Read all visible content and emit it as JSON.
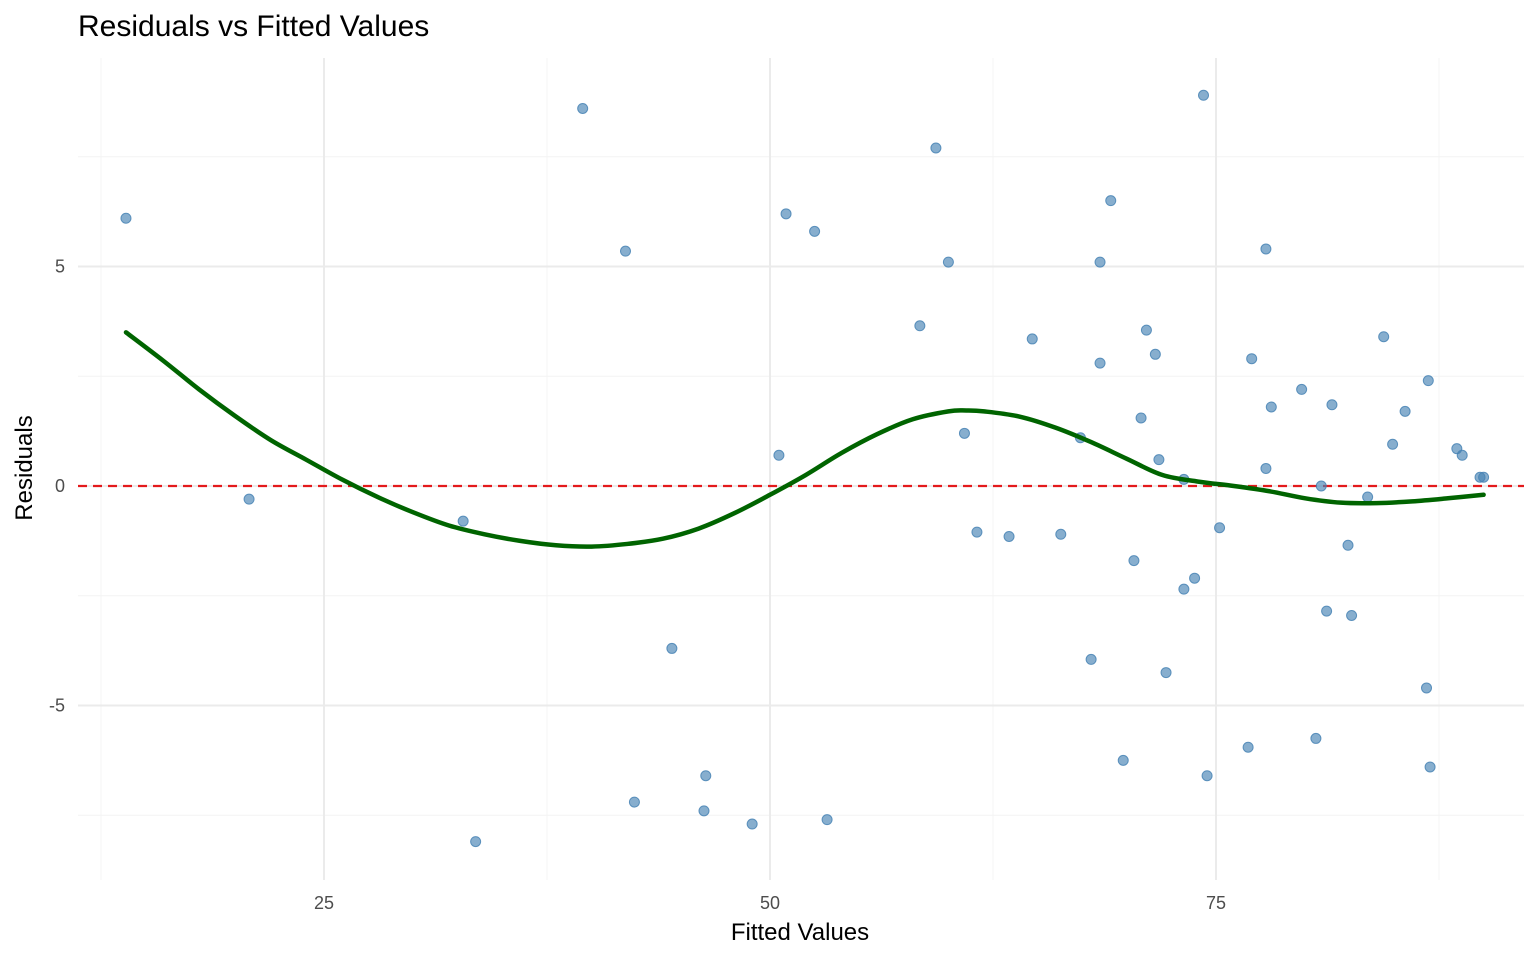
{
  "chart_data": {
    "type": "scatter",
    "title": "Residuals vs Fitted Values",
    "xlabel": "Fitted Values",
    "ylabel": "Residuals",
    "xlim": [
      10,
      90
    ],
    "ylim": [
      -9,
      9.5
    ],
    "x_ticks": [
      25,
      50,
      75
    ],
    "y_ticks": [
      -5,
      0,
      5
    ],
    "x_minor_ticks": [
      12.5,
      37.5,
      62.5,
      87.5
    ],
    "y_minor_ticks": [
      -7.5,
      -2.5,
      2.5,
      7.5
    ],
    "grid": true,
    "legend": "none",
    "colors": {
      "points": "#4682B4",
      "smooth": "#006400",
      "reference": "#E31A1C",
      "grid_major": "#EBEBEB",
      "grid_minor": "#F4F4F4"
    },
    "reference_line": {
      "y": 0,
      "style": "dashed"
    },
    "points": [
      [
        13.9,
        6.1
      ],
      [
        20.8,
        -0.3
      ],
      [
        32.8,
        -0.8
      ],
      [
        33.5,
        -8.1
      ],
      [
        39.5,
        8.6
      ],
      [
        41.9,
        5.35
      ],
      [
        42.4,
        -7.2
      ],
      [
        44.5,
        -3.7
      ],
      [
        46.3,
        -7.4
      ],
      [
        46.4,
        -6.6
      ],
      [
        49.0,
        -7.7
      ],
      [
        50.5,
        0.7
      ],
      [
        50.9,
        6.2
      ],
      [
        52.5,
        5.8
      ],
      [
        53.2,
        -7.6
      ],
      [
        58.4,
        3.65
      ],
      [
        59.3,
        7.7
      ],
      [
        60.0,
        5.1
      ],
      [
        60.9,
        1.2
      ],
      [
        61.6,
        -1.05
      ],
      [
        63.4,
        -1.15
      ],
      [
        64.7,
        3.35
      ],
      [
        66.3,
        -1.1
      ],
      [
        67.4,
        1.1
      ],
      [
        68.0,
        -3.95
      ],
      [
        68.5,
        2.8
      ],
      [
        68.5,
        5.1
      ],
      [
        69.1,
        6.5
      ],
      [
        69.8,
        -6.25
      ],
      [
        70.4,
        -1.7
      ],
      [
        70.8,
        1.55
      ],
      [
        71.1,
        3.55
      ],
      [
        71.6,
        3.0
      ],
      [
        71.8,
        0.6
      ],
      [
        72.2,
        -4.25
      ],
      [
        73.2,
        0.15
      ],
      [
        73.2,
        -2.35
      ],
      [
        73.8,
        -2.1
      ],
      [
        74.3,
        8.9
      ],
      [
        74.5,
        -6.6
      ],
      [
        75.2,
        -0.95
      ],
      [
        76.8,
        -5.95
      ],
      [
        77.0,
        2.9
      ],
      [
        77.8,
        5.4
      ],
      [
        77.8,
        0.4
      ],
      [
        78.1,
        1.8
      ],
      [
        79.8,
        2.2
      ],
      [
        80.6,
        -5.75
      ],
      [
        80.9,
        0.0
      ],
      [
        81.2,
        -2.85
      ],
      [
        81.5,
        1.85
      ],
      [
        82.4,
        -1.35
      ],
      [
        82.6,
        -2.95
      ],
      [
        83.5,
        -0.25
      ],
      [
        84.4,
        3.4
      ],
      [
        84.9,
        0.95
      ],
      [
        85.6,
        1.7
      ],
      [
        86.8,
        -4.6
      ],
      [
        86.9,
        2.4
      ],
      [
        87.0,
        -6.4
      ],
      [
        88.5,
        0.85
      ],
      [
        88.8,
        0.7
      ],
      [
        89.8,
        0.2
      ],
      [
        90.0,
        0.2
      ]
    ],
    "smooth": [
      [
        13.9,
        3.5
      ],
      [
        16,
        2.85
      ],
      [
        18,
        2.2
      ],
      [
        20,
        1.6
      ],
      [
        22,
        1.05
      ],
      [
        24,
        0.6
      ],
      [
        26,
        0.15
      ],
      [
        28,
        -0.25
      ],
      [
        30,
        -0.6
      ],
      [
        32,
        -0.9
      ],
      [
        34,
        -1.1
      ],
      [
        36,
        -1.25
      ],
      [
        38,
        -1.35
      ],
      [
        40,
        -1.38
      ],
      [
        42,
        -1.32
      ],
      [
        44,
        -1.2
      ],
      [
        46,
        -0.97
      ],
      [
        48,
        -0.62
      ],
      [
        50,
        -0.2
      ],
      [
        52,
        0.25
      ],
      [
        54,
        0.75
      ],
      [
        56,
        1.18
      ],
      [
        58,
        1.52
      ],
      [
        60,
        1.7
      ],
      [
        61,
        1.72
      ],
      [
        62,
        1.7
      ],
      [
        64,
        1.58
      ],
      [
        66,
        1.33
      ],
      [
        68,
        1.0
      ],
      [
        70,
        0.62
      ],
      [
        72,
        0.25
      ],
      [
        74,
        0.1
      ],
      [
        76,
        0.0
      ],
      [
        78,
        -0.12
      ],
      [
        80,
        -0.28
      ],
      [
        82,
        -0.38
      ],
      [
        84,
        -0.39
      ],
      [
        86,
        -0.35
      ],
      [
        88,
        -0.28
      ],
      [
        90,
        -0.2
      ]
    ]
  }
}
